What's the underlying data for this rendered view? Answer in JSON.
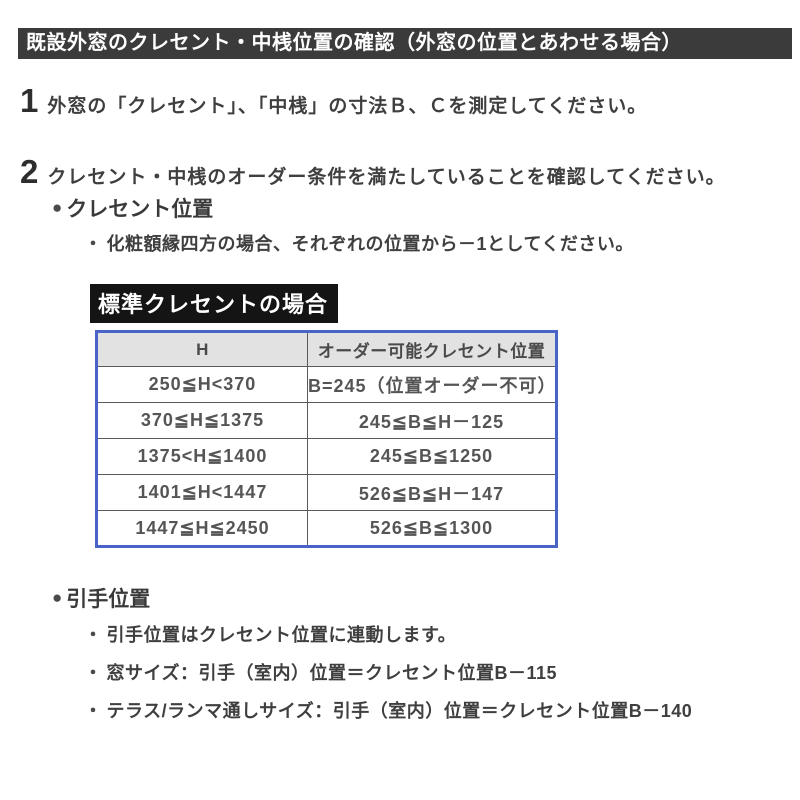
{
  "banner": {
    "title": "既設外窓のクレセント・中桟位置の確認（外窓の位置とあわせる場合）"
  },
  "steps": [
    {
      "number": "1",
      "text": "外窓の「クレセント」、「中桟」の寸法Ｂ、Ｃを測定してください。"
    },
    {
      "number": "2",
      "text": "クレセント・中桟のオーダー条件を満たしていることを確認してください。"
    }
  ],
  "icons": {
    "bullet": "●",
    "dot": "・"
  },
  "crescent": {
    "label": "クレセント位置",
    "note": "化粧額縁四方の場合、それぞれの位置から－1としてください。"
  },
  "table": {
    "caption": "標準クレセントの場合",
    "headers": [
      "H",
      "オーダー可能クレセント位置"
    ],
    "rows": [
      [
        "250≦H<370",
        "B=245（位置オーダー不可）"
      ],
      [
        "370≦H≦1375",
        "245≦B≦H－125"
      ],
      [
        "1375<H≦1400",
        "245≦B≦1250"
      ],
      [
        "1401≦H<1447",
        "526≦B≦H－147"
      ],
      [
        "1447≦H≦2450",
        "526≦B≦1300"
      ]
    ],
    "border_color": "#4a63c8",
    "header_bg": "#e2e2e2"
  },
  "handle": {
    "label": "引手位置",
    "notes": [
      "引手位置はクレセント位置に連動します。",
      "窓サイズ：引手（室内）位置＝クレセント位置B－115",
      "テラス/ランマ通しサイズ：引手（室内）位置＝クレセント位置B－140"
    ]
  },
  "colors": {
    "banner_bg": "#3b3b3b",
    "caption_bg": "#141414",
    "text": "#3f3f3f"
  }
}
